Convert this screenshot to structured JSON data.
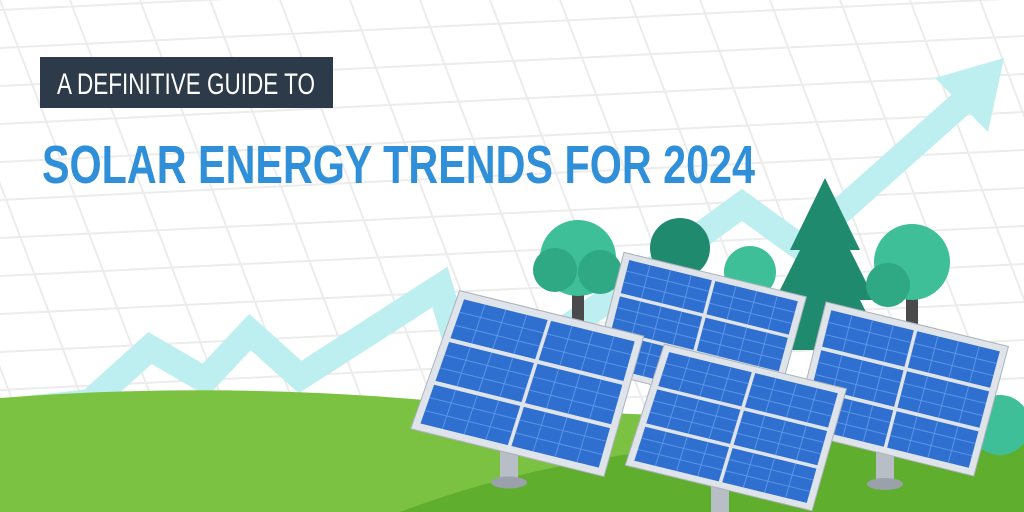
{
  "banner": {
    "kicker": "A DEFINITIVE GUIDE TO",
    "title": "SOLAR ENERGY TRENDS FOR 2024"
  }
}
